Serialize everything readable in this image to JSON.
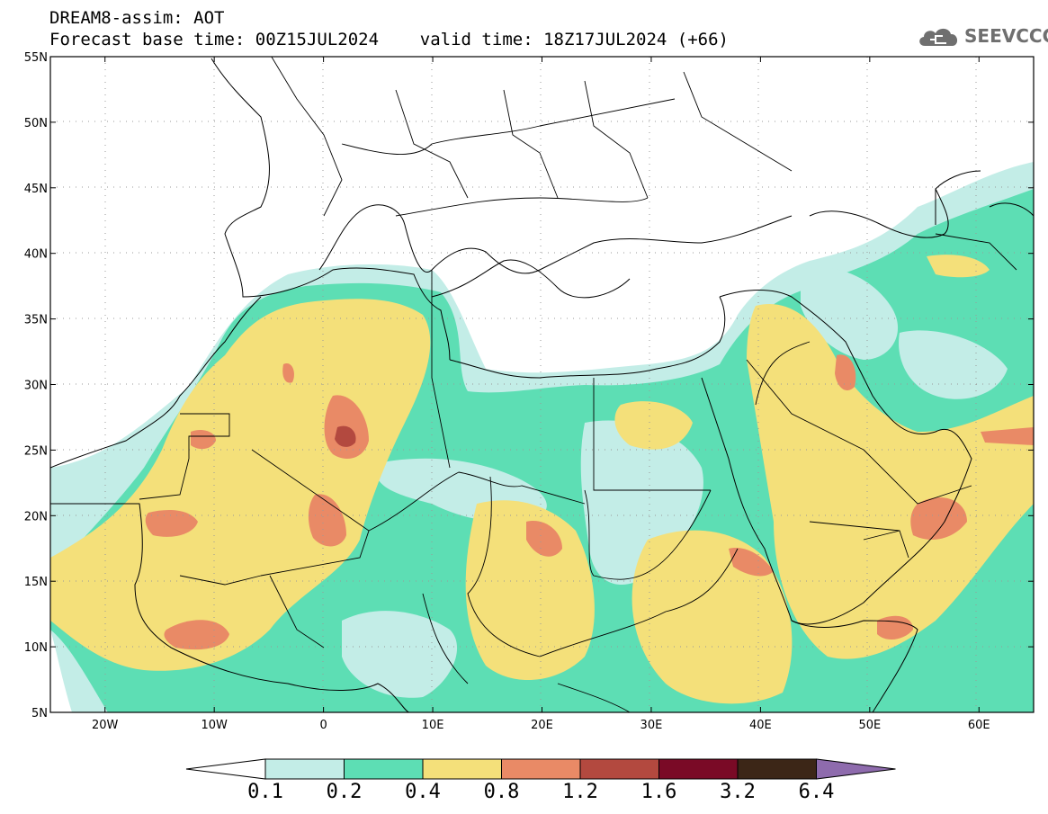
{
  "header": {
    "title_line1": "DREAM8-assim: AOT",
    "title_line2": "Forecast base time: 00Z15JUL2024    valid time: 18Z17JUL2024 (+66)"
  },
  "logo": {
    "text": "SEEVCCC",
    "icon": "cloud-icon",
    "color": "#6f6f6f"
  },
  "map": {
    "type": "contour-map",
    "variable": "AOT",
    "lon_range": [
      -25,
      65
    ],
    "lat_range": [
      5,
      55
    ],
    "grid": "dotted",
    "lat_ticks": [
      "5N",
      "10N",
      "15N",
      "20N",
      "25N",
      "30N",
      "35N",
      "40N",
      "45N",
      "50N",
      "55N"
    ],
    "lon_ticks": [
      "20W",
      "10W",
      "0",
      "10E",
      "20E",
      "30E",
      "40E",
      "50E",
      "60E"
    ]
  },
  "colorbar": {
    "levels": [
      "0.1",
      "0.2",
      "0.4",
      "0.8",
      "1.2",
      "1.6",
      "3.2",
      "6.4"
    ],
    "colors": [
      "#ffffff",
      "#c3ede7",
      "#5ddeb4",
      "#f4e07a",
      "#e98a66",
      "#b3493f",
      "#7a0a26",
      "#3c2617",
      "#8e6bad"
    ]
  }
}
